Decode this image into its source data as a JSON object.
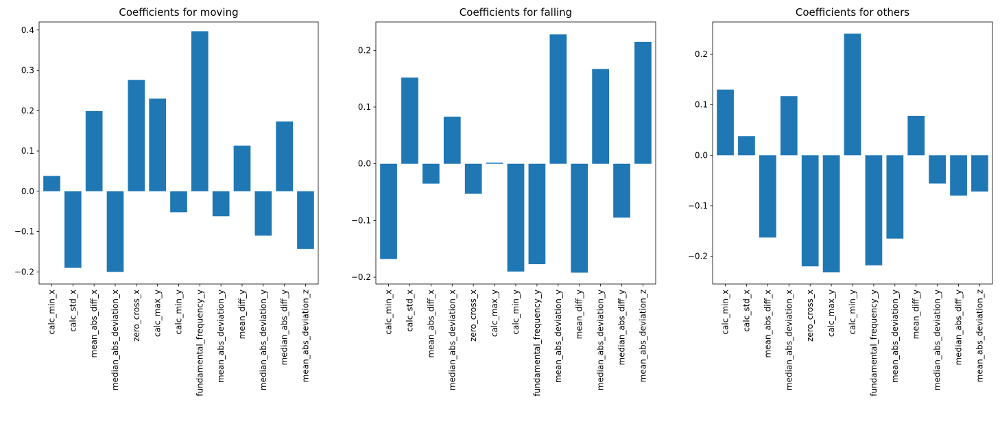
{
  "chart_data": [
    {
      "type": "bar",
      "title": "Coefficients for moving",
      "categories": [
        "calc_min_x",
        "calc_std_x",
        "mean_abs_diff_x",
        "median_abs_deviation_x",
        "zero_cross_x",
        "calc_max_y",
        "calc_min_y",
        "fundamental_frequency_y",
        "mean_abs_deviation_y",
        "mean_diff_y",
        "median_abs_deviation_y",
        "median_abs_diff_y",
        "mean_abs_deviation_z"
      ],
      "values": [
        0.038,
        -0.19,
        0.199,
        -0.2,
        0.276,
        0.23,
        -0.052,
        0.397,
        -0.062,
        0.113,
        -0.11,
        0.173,
        -0.143
      ],
      "ylim": [
        -0.23,
        0.42
      ],
      "yticks": [
        -0.2,
        -0.1,
        0.0,
        0.1,
        0.2,
        0.3,
        0.4
      ],
      "ytick_labels": [
        "−0.2",
        "−0.1",
        "0.0",
        "0.1",
        "0.2",
        "0.3",
        "0.4"
      ],
      "color": "#1f77b4",
      "grid": false
    },
    {
      "type": "bar",
      "title": "Coefficients for falling",
      "categories": [
        "calc_min_x",
        "calc_std_x",
        "mean_abs_diff_x",
        "median_abs_deviation_x",
        "zero_cross_x",
        "calc_max_y",
        "calc_min_y",
        "fundamental_frequency_y",
        "mean_abs_deviation_y",
        "mean_diff_y",
        "median_abs_deviation_y",
        "median_abs_diff_y",
        "mean_abs_deviation_z"
      ],
      "values": [
        -0.168,
        0.152,
        -0.035,
        0.083,
        -0.053,
        0.002,
        -0.19,
        -0.177,
        0.228,
        -0.192,
        0.167,
        -0.095,
        0.215
      ],
      "ylim": [
        -0.212,
        0.25
      ],
      "yticks": [
        -0.2,
        -0.1,
        0.0,
        0.1,
        0.2
      ],
      "ytick_labels": [
        "−0.2",
        "−0.1",
        "0.0",
        "0.1",
        "0.2"
      ],
      "color": "#1f77b4",
      "grid": false
    },
    {
      "type": "bar",
      "title": "Coefficients for others",
      "categories": [
        "calc_min_x",
        "calc_std_x",
        "mean_abs_diff_x",
        "median_abs_deviation_x",
        "zero_cross_x",
        "calc_max_y",
        "calc_min_y",
        "fundamental_frequency_y",
        "mean_abs_deviation_y",
        "mean_diff_y",
        "median_abs_deviation_y",
        "median_abs_diff_y",
        "mean_abs_deviation_z"
      ],
      "values": [
        0.13,
        0.038,
        -0.163,
        0.117,
        -0.22,
        -0.232,
        0.241,
        -0.218,
        -0.165,
        0.078,
        -0.056,
        -0.08,
        -0.072
      ],
      "ylim": [
        -0.255,
        0.264
      ],
      "yticks": [
        -0.2,
        -0.1,
        0.0,
        0.1,
        0.2
      ],
      "ytick_labels": [
        "−0.2",
        "−0.1",
        "0.0",
        "0.1",
        "0.2"
      ],
      "color": "#1f77b4",
      "grid": false
    }
  ]
}
